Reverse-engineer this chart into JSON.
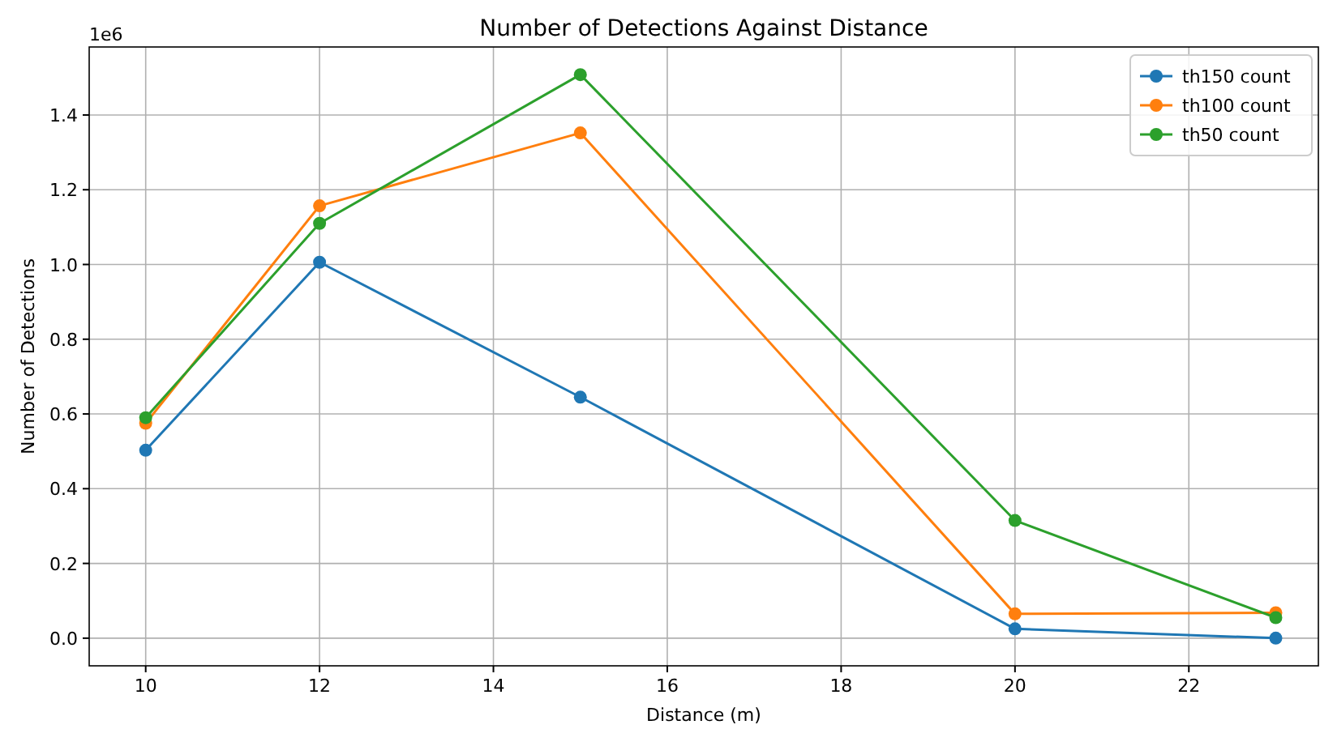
{
  "chart_data": {
    "type": "line",
    "title": "Number of Detections Against Distance",
    "xlabel": "Distance (m)",
    "ylabel": "Number of Detections",
    "annotations": [
      "1e6"
    ],
    "x": [
      10,
      12,
      15,
      20,
      23
    ],
    "series": [
      {
        "name": "th150 count",
        "color": "#1f77b4",
        "values": [
          0.503,
          1.006,
          0.645,
          0.025,
          0.0
        ]
      },
      {
        "name": "th100 count",
        "color": "#ff7f0e",
        "values": [
          0.575,
          1.157,
          1.352,
          0.065,
          0.068
        ]
      },
      {
        "name": "th50 count",
        "color": "#2ca02c",
        "values": [
          0.59,
          1.11,
          1.508,
          0.315,
          0.055
        ]
      }
    ],
    "xlim": [
      9.35,
      23.49
    ],
    "ylim": [
      -0.074,
      1.582
    ],
    "xticks": [
      10,
      12,
      14,
      16,
      18,
      20,
      22
    ],
    "yticks": [
      {
        "value": 0,
        "label": "0.0"
      },
      {
        "value": 0.2,
        "label": "0.2"
      },
      {
        "value": 0.4,
        "label": "0.4"
      },
      {
        "value": 0.6,
        "label": "0.6"
      },
      {
        "value": 0.8,
        "label": "0.8"
      },
      {
        "value": 1.0,
        "label": "1.0"
      },
      {
        "value": 1.2,
        "label": "1.2"
      },
      {
        "value": 1.4,
        "label": "1.4"
      }
    ],
    "grid": true,
    "legend": "top right",
    "marker": "circle",
    "line_style": "solid"
  }
}
